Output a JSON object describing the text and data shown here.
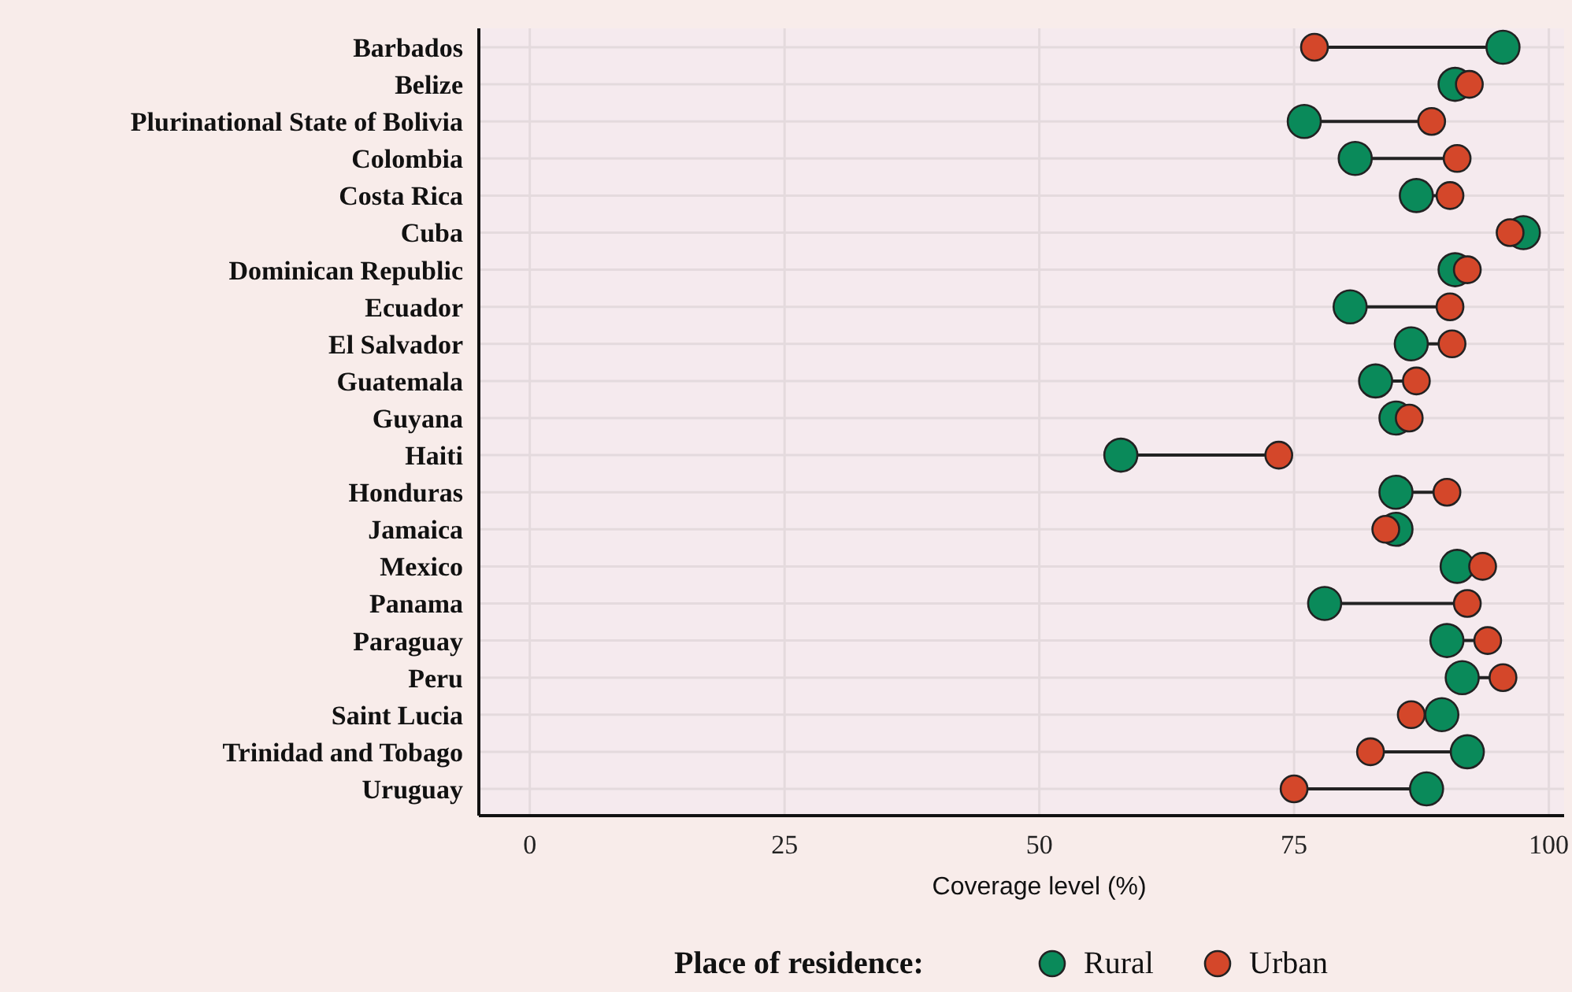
{
  "chart_data": {
    "type": "scatter",
    "orientation": "horizontal",
    "xlabel": "Coverage level (%)",
    "legend_title": "Place of residence:",
    "legend": "bottom",
    "grid": true,
    "marker": "circle",
    "categories": [
      "Barbados",
      "Belize",
      "Plurinational State of Bolivia",
      "Colombia",
      "Costa Rica",
      "Cuba",
      "Dominican Republic",
      "Ecuador",
      "El Salvador",
      "Guatemala",
      "Guyana",
      "Haiti",
      "Honduras",
      "Jamaica",
      "Mexico",
      "Panama",
      "Paraguay",
      "Peru",
      "Saint Lucia",
      "Trinidad and Tobago",
      "Uruguay"
    ],
    "xlim": [
      -5,
      101.5
    ],
    "xticks": [
      0,
      25,
      50,
      75,
      100
    ],
    "series": [
      {
        "name": "Rural",
        "color": "#0a8a5a",
        "values": [
          95.5,
          90.8,
          76,
          81,
          87,
          97.5,
          90.8,
          80.5,
          86.5,
          83,
          85,
          58,
          85,
          85,
          91,
          78,
          90,
          91.5,
          89.5,
          92,
          88
        ]
      },
      {
        "name": "Urban",
        "color": "#d4472a",
        "values": [
          77,
          92.2,
          88.5,
          91,
          90.3,
          96.2,
          92,
          90.3,
          90.5,
          87,
          86.3,
          73.5,
          90,
          84,
          93.5,
          92,
          94,
          95.5,
          86.5,
          82.5,
          75
        ]
      }
    ]
  }
}
